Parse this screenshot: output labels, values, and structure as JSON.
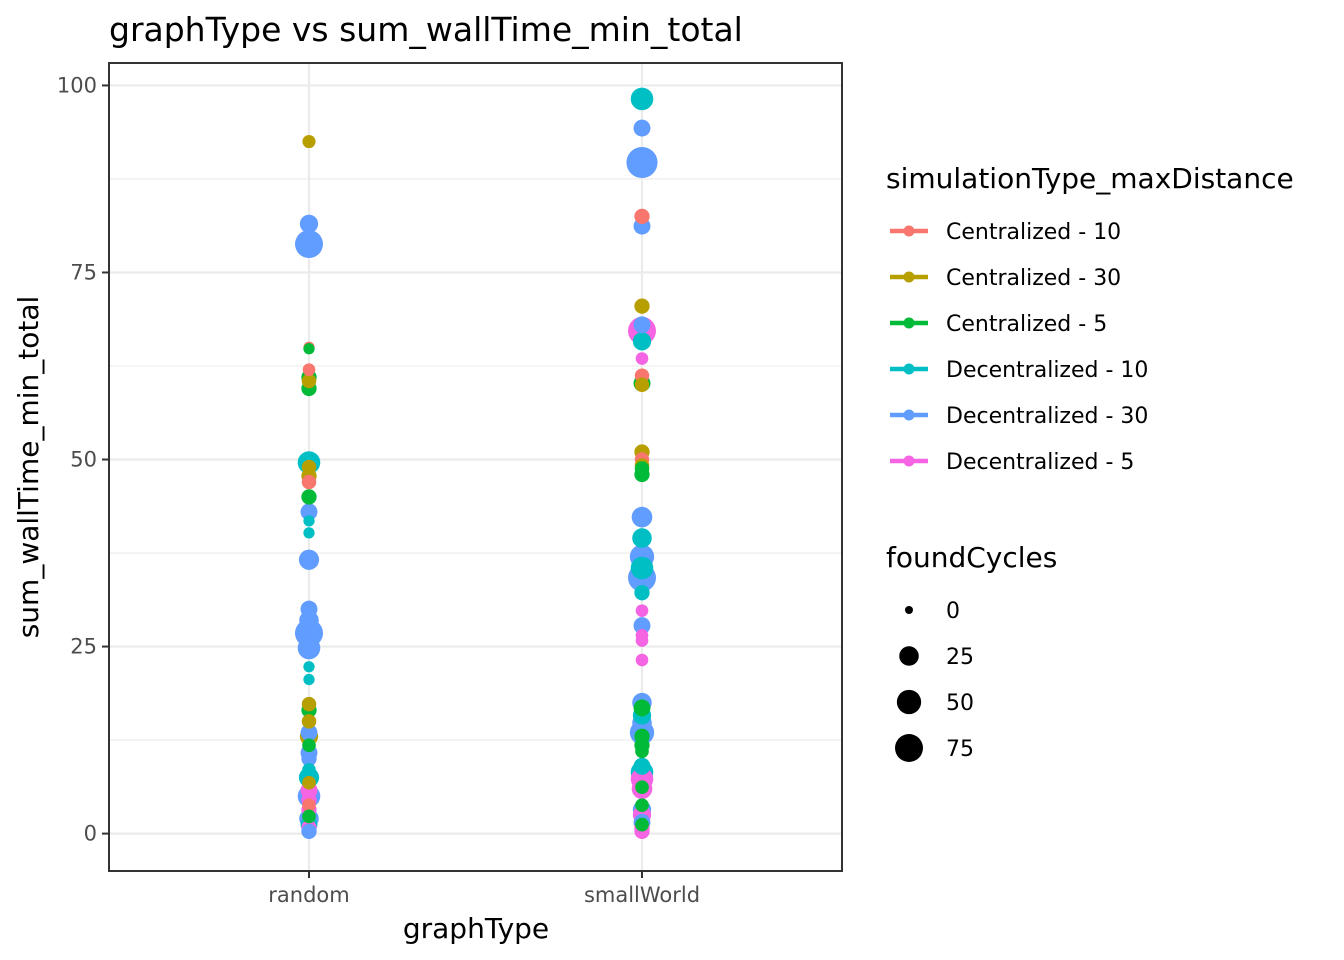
{
  "chart_data": {
    "type": "scatter",
    "title": "graphType  vs  sum_wallTime_min_total",
    "xlabel": "graphType",
    "ylabel": "sum_wallTime_min_total",
    "categories": [
      "random",
      "smallWorld"
    ],
    "ylim": [
      -5,
      103
    ],
    "yticks": [
      0,
      25,
      50,
      75,
      100
    ],
    "grid": true,
    "legend_placement": "right",
    "color_legend": {
      "title": "simulationType_maxDistance",
      "entries": [
        {
          "label": "Centralized - 10",
          "color": "#F8766D"
        },
        {
          "label": "Centralized - 30",
          "color": "#B79F00"
        },
        {
          "label": "Centralized - 5",
          "color": "#00BA38"
        },
        {
          "label": "Decentralized - 10",
          "color": "#00BFC4"
        },
        {
          "label": "Decentralized - 30",
          "color": "#619CFF"
        },
        {
          "label": "Decentralized - 5",
          "color": "#F564E3"
        }
      ]
    },
    "size_legend": {
      "title": "foundCycles",
      "entries": [
        {
          "label": "0",
          "value": 0
        },
        {
          "label": "25",
          "value": 25
        },
        {
          "label": "50",
          "value": 50
        },
        {
          "label": "75",
          "value": 75
        }
      ]
    },
    "points": [
      {
        "x": "random",
        "y": 92.5,
        "group": "Centralized - 30",
        "size": 5
      },
      {
        "x": "random",
        "y": 81.5,
        "group": "Decentralized - 30",
        "size": 20
      },
      {
        "x": "random",
        "y": 78.8,
        "group": "Decentralized - 30",
        "size": 75
      },
      {
        "x": "random",
        "y": 65.0,
        "group": "Centralized - 10",
        "size": 2
      },
      {
        "x": "random",
        "y": 64.8,
        "group": "Centralized - 5",
        "size": 2
      },
      {
        "x": "random",
        "y": 62.0,
        "group": "Centralized - 10",
        "size": 4
      },
      {
        "x": "random",
        "y": 61.0,
        "group": "Centralized - 5",
        "size": 10
      },
      {
        "x": "random",
        "y": 60.5,
        "group": "Centralized - 30",
        "size": 8
      },
      {
        "x": "random",
        "y": 59.5,
        "group": "Centralized - 5",
        "size": 10
      },
      {
        "x": "random",
        "y": 49.6,
        "group": "Decentralized - 10",
        "size": 40
      },
      {
        "x": "random",
        "y": 49.0,
        "group": "Centralized - 30",
        "size": 8
      },
      {
        "x": "random",
        "y": 47.8,
        "group": "Centralized - 30",
        "size": 10
      },
      {
        "x": "random",
        "y": 47.0,
        "group": "Centralized - 10",
        "size": 8
      },
      {
        "x": "random",
        "y": 45.0,
        "group": "Centralized - 5",
        "size": 10
      },
      {
        "x": "random",
        "y": 43.0,
        "group": "Decentralized - 30",
        "size": 15
      },
      {
        "x": "random",
        "y": 41.8,
        "group": "Decentralized - 10",
        "size": 2
      },
      {
        "x": "random",
        "y": 40.2,
        "group": "Decentralized - 10",
        "size": 2
      },
      {
        "x": "random",
        "y": 36.6,
        "group": "Decentralized - 30",
        "size": 28
      },
      {
        "x": "random",
        "y": 30.0,
        "group": "Decentralized - 30",
        "size": 15
      },
      {
        "x": "random",
        "y": 28.5,
        "group": "Decentralized - 30",
        "size": 25
      },
      {
        "x": "random",
        "y": 26.8,
        "group": "Decentralized - 30",
        "size": 75
      },
      {
        "x": "random",
        "y": 24.8,
        "group": "Decentralized - 30",
        "size": 40
      },
      {
        "x": "random",
        "y": 22.3,
        "group": "Decentralized - 10",
        "size": 2
      },
      {
        "x": "random",
        "y": 20.6,
        "group": "Decentralized - 10",
        "size": 2
      },
      {
        "x": "random",
        "y": 17.3,
        "group": "Centralized - 30",
        "size": 8
      },
      {
        "x": "random",
        "y": 16.5,
        "group": "Centralized - 5",
        "size": 10
      },
      {
        "x": "random",
        "y": 15.0,
        "group": "Centralized - 30",
        "size": 8
      },
      {
        "x": "random",
        "y": 13.5,
        "group": "Decentralized - 30",
        "size": 15
      },
      {
        "x": "random",
        "y": 13.0,
        "group": "Centralized - 30",
        "size": 20
      },
      {
        "x": "random",
        "y": 11.8,
        "group": "Centralized - 5",
        "size": 6
      },
      {
        "x": "random",
        "y": 10.8,
        "group": "Decentralized - 30",
        "size": 15
      },
      {
        "x": "random",
        "y": 10.0,
        "group": "Decentralized - 30",
        "size": 10
      },
      {
        "x": "random",
        "y": 8.5,
        "group": "Decentralized - 10",
        "size": 6
      },
      {
        "x": "random",
        "y": 7.5,
        "group": "Decentralized - 10",
        "size": 28
      },
      {
        "x": "random",
        "y": 6.8,
        "group": "Centralized - 30",
        "size": 6
      },
      {
        "x": "random",
        "y": 5.8,
        "group": "Decentralized - 5",
        "size": 15
      },
      {
        "x": "random",
        "y": 5.0,
        "group": "Decentralized - 30",
        "size": 40
      },
      {
        "x": "random",
        "y": 4.5,
        "group": "Decentralized - 5",
        "size": 10
      },
      {
        "x": "random",
        "y": 3.8,
        "group": "Centralized - 10",
        "size": 6
      },
      {
        "x": "random",
        "y": 3.2,
        "group": "Decentralized - 5",
        "size": 10
      },
      {
        "x": "random",
        "y": 2.3,
        "group": "Centralized - 5",
        "size": 6
      },
      {
        "x": "random",
        "y": 2.0,
        "group": "Decentralized - 30",
        "size": 25
      },
      {
        "x": "random",
        "y": 1.2,
        "group": "Decentralized - 10",
        "size": 15
      },
      {
        "x": "random",
        "y": 0.8,
        "group": "Decentralized - 5",
        "size": 10
      },
      {
        "x": "random",
        "y": 0.3,
        "group": "Decentralized - 30",
        "size": 10
      },
      {
        "x": "smallWorld",
        "y": 98.2,
        "group": "Decentralized - 10",
        "size": 40
      },
      {
        "x": "smallWorld",
        "y": 94.3,
        "group": "Decentralized - 30",
        "size": 15
      },
      {
        "x": "smallWorld",
        "y": 89.7,
        "group": "Decentralized - 30",
        "size": 100
      },
      {
        "x": "smallWorld",
        "y": 82.5,
        "group": "Centralized - 10",
        "size": 10
      },
      {
        "x": "smallWorld",
        "y": 81.2,
        "group": "Decentralized - 30",
        "size": 15
      },
      {
        "x": "smallWorld",
        "y": 70.5,
        "group": "Centralized - 30",
        "size": 10
      },
      {
        "x": "smallWorld",
        "y": 68.0,
        "group": "Decentralized - 30",
        "size": 15
      },
      {
        "x": "smallWorld",
        "y": 67.2,
        "group": "Decentralized - 5",
        "size": 75
      },
      {
        "x": "smallWorld",
        "y": 65.8,
        "group": "Decentralized - 10",
        "size": 20
      },
      {
        "x": "smallWorld",
        "y": 63.5,
        "group": "Decentralized - 5",
        "size": 4
      },
      {
        "x": "smallWorld",
        "y": 61.2,
        "group": "Centralized - 10",
        "size": 8
      },
      {
        "x": "smallWorld",
        "y": 60.2,
        "group": "Centralized - 5",
        "size": 15
      },
      {
        "x": "smallWorld",
        "y": 60.0,
        "group": "Centralized - 30",
        "size": 8
      },
      {
        "x": "smallWorld",
        "y": 51.0,
        "group": "Centralized - 30",
        "size": 10
      },
      {
        "x": "smallWorld",
        "y": 50.0,
        "group": "Centralized - 10",
        "size": 8
      },
      {
        "x": "smallWorld",
        "y": 49.2,
        "group": "Centralized - 30",
        "size": 8
      },
      {
        "x": "smallWorld",
        "y": 48.8,
        "group": "Centralized - 5",
        "size": 8
      },
      {
        "x": "smallWorld",
        "y": 48.0,
        "group": "Centralized - 5",
        "size": 10
      },
      {
        "x": "smallWorld",
        "y": 42.3,
        "group": "Decentralized - 30",
        "size": 30
      },
      {
        "x": "smallWorld",
        "y": 39.5,
        "group": "Decentralized - 10",
        "size": 25
      },
      {
        "x": "smallWorld",
        "y": 37.0,
        "group": "Decentralized - 30",
        "size": 50
      },
      {
        "x": "smallWorld",
        "y": 35.5,
        "group": "Decentralized - 10",
        "size": 40
      },
      {
        "x": "smallWorld",
        "y": 34.2,
        "group": "Decentralized - 30",
        "size": 75
      },
      {
        "x": "smallWorld",
        "y": 32.2,
        "group": "Decentralized - 10",
        "size": 10
      },
      {
        "x": "smallWorld",
        "y": 29.8,
        "group": "Decentralized - 5",
        "size": 4
      },
      {
        "x": "smallWorld",
        "y": 27.8,
        "group": "Decentralized - 30",
        "size": 15
      },
      {
        "x": "smallWorld",
        "y": 26.5,
        "group": "Decentralized - 5",
        "size": 4
      },
      {
        "x": "smallWorld",
        "y": 25.8,
        "group": "Decentralized - 5",
        "size": 4
      },
      {
        "x": "smallWorld",
        "y": 23.2,
        "group": "Decentralized - 5",
        "size": 4
      },
      {
        "x": "smallWorld",
        "y": 17.5,
        "group": "Decentralized - 30",
        "size": 25
      },
      {
        "x": "smallWorld",
        "y": 16.8,
        "group": "Centralized - 5",
        "size": 15
      },
      {
        "x": "smallWorld",
        "y": 15.8,
        "group": "Decentralized - 10",
        "size": 20
      },
      {
        "x": "smallWorld",
        "y": 14.8,
        "group": "Decentralized - 30",
        "size": 25
      },
      {
        "x": "smallWorld",
        "y": 13.5,
        "group": "Decentralized - 30",
        "size": 50
      },
      {
        "x": "smallWorld",
        "y": 13.0,
        "group": "Centralized - 5",
        "size": 10
      },
      {
        "x": "smallWorld",
        "y": 11.8,
        "group": "Centralized - 5",
        "size": 10
      },
      {
        "x": "smallWorld",
        "y": 11.0,
        "group": "Centralized - 5",
        "size": 6
      },
      {
        "x": "smallWorld",
        "y": 9.0,
        "group": "Decentralized - 10",
        "size": 15
      },
      {
        "x": "smallWorld",
        "y": 8.2,
        "group": "Decentralized - 10",
        "size": 40
      },
      {
        "x": "smallWorld",
        "y": 7.3,
        "group": "Decentralized - 5",
        "size": 40
      },
      {
        "x": "smallWorld",
        "y": 6.2,
        "group": "Centralized - 5",
        "size": 6
      },
      {
        "x": "smallWorld",
        "y": 6.0,
        "group": "Decentralized - 5",
        "size": 30
      },
      {
        "x": "smallWorld",
        "y": 3.8,
        "group": "Centralized - 5",
        "size": 6
      },
      {
        "x": "smallWorld",
        "y": 3.2,
        "group": "Decentralized - 30",
        "size": 20
      },
      {
        "x": "smallWorld",
        "y": 2.5,
        "group": "Decentralized - 5",
        "size": 20
      },
      {
        "x": "smallWorld",
        "y": 1.5,
        "group": "Decentralized - 30",
        "size": 15
      },
      {
        "x": "smallWorld",
        "y": 1.2,
        "group": "Centralized - 5",
        "size": 6
      },
      {
        "x": "smallWorld",
        "y": 0.8,
        "group": "Decentralized - 5",
        "size": 10
      },
      {
        "x": "smallWorld",
        "y": 0.3,
        "group": "Decentralized - 5",
        "size": 10
      }
    ]
  }
}
